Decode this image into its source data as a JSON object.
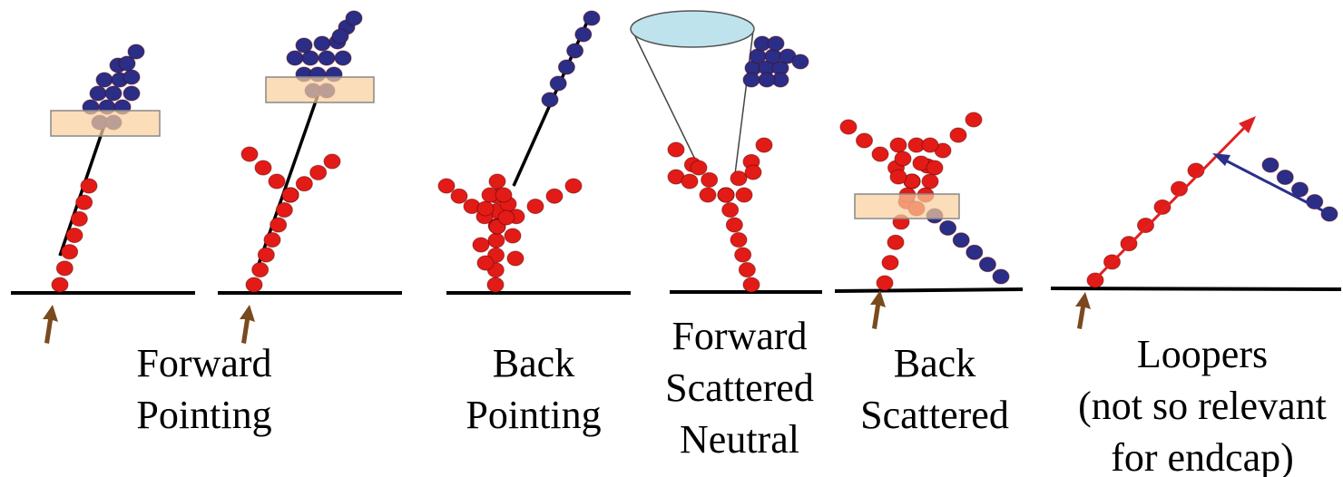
{
  "labels": [
    {
      "lines": [
        "Forward",
        "Pointing"
      ]
    },
    {
      "lines": [
        "Back",
        "Pointing"
      ]
    },
    {
      "lines": [
        "Forward",
        "Scattered",
        "Neutral"
      ]
    },
    {
      "lines": [
        "Back",
        "Scattered"
      ]
    },
    {
      "lines": [
        "Loopers",
        "(not so relevant",
        "for endcap)"
      ]
    }
  ]
}
